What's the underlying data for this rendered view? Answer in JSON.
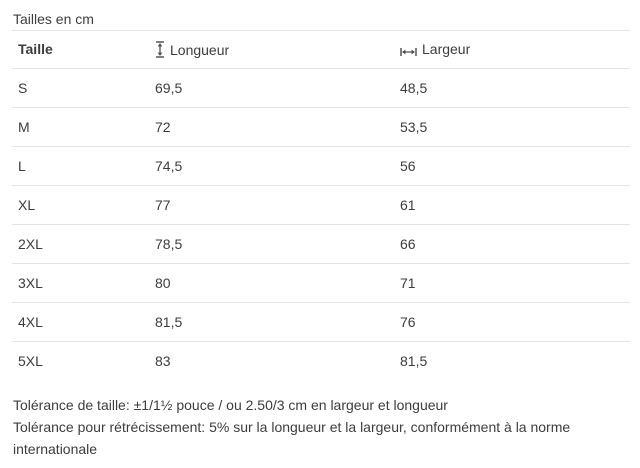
{
  "title": "Tailles en cm",
  "table": {
    "columns": [
      {
        "label": "Taille",
        "icon": null
      },
      {
        "label": "Longueur",
        "icon": "height-arrow-icon"
      },
      {
        "label": "Largeur",
        "icon": "width-arrow-icon"
      }
    ],
    "rows": [
      {
        "taille": "S",
        "longueur": "69,5",
        "largeur": "48,5"
      },
      {
        "taille": "M",
        "longueur": "72",
        "largeur": "53,5"
      },
      {
        "taille": "L",
        "longueur": "74,5",
        "largeur": "56"
      },
      {
        "taille": "XL",
        "longueur": "77",
        "largeur": "61"
      },
      {
        "taille": "2XL",
        "longueur": "78,5",
        "largeur": "66"
      },
      {
        "taille": "3XL",
        "longueur": "80",
        "largeur": "71"
      },
      {
        "taille": "4XL",
        "longueur": "81,5",
        "largeur": "76"
      },
      {
        "taille": "5XL",
        "longueur": "83",
        "largeur": "81,5"
      }
    ]
  },
  "footnotes": [
    "Tolérance de taille: ±1/1½ pouce / ou 2.50/3 cm en largeur et longueur",
    "Tolérance pour rétrécissement: 5% sur la longueur et la largeur, conformément à la norme internationale"
  ],
  "colors": {
    "background": "#ffffff",
    "text": "#3d3d3d",
    "divider": "#e4e4e4",
    "icon": "#4a4a4a"
  }
}
